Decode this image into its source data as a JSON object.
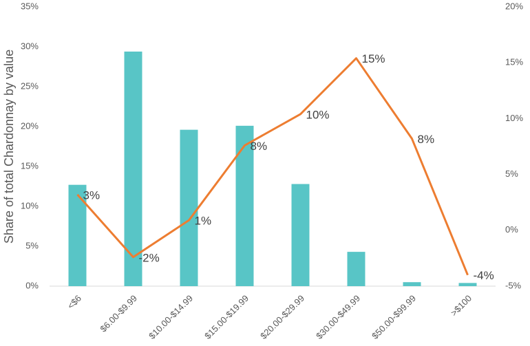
{
  "chart_data": {
    "type": "bar-line",
    "y_label": "Share of total Chardonnay by value",
    "categories": [
      "<$6",
      "$6.00-$9.99",
      "$10.00-$14.99",
      "$15.00-$19.99",
      "$20.00-$29.99",
      "$30.00-$49.99",
      "$50.00-$99.99",
      ">$100"
    ],
    "series": [
      {
        "type": "bar",
        "color": "#58c5c6",
        "values": [
          12.7,
          29.4,
          19.6,
          20.1,
          12.8,
          4.3,
          0.5,
          0.4
        ]
      },
      {
        "type": "line",
        "axis": "y2",
        "color": "#ed7d31",
        "values": [
          3.2,
          -2.4,
          0.9,
          7.6,
          10.4,
          15.4,
          8.2,
          -4.0
        ],
        "value_labels": [
          "3%",
          "-2%",
          "1%",
          "8%",
          "10%",
          "15%",
          "8%",
          "-4%"
        ]
      }
    ],
    "ylim": [
      0,
      35
    ],
    "yticks": [
      {
        "value": 0,
        "label": "0%"
      },
      {
        "value": 5,
        "label": "5%"
      },
      {
        "value": 10,
        "label": "10%"
      },
      {
        "value": 15,
        "label": "15%"
      },
      {
        "value": 20,
        "label": "20%"
      },
      {
        "value": 25,
        "label": "25%"
      },
      {
        "value": 30,
        "label": "30%"
      },
      {
        "value": 35,
        "label": "35%"
      }
    ],
    "y2lim": [
      -5,
      20
    ],
    "y2ticks": [
      {
        "value": -5,
        "label": "-5%"
      },
      {
        "value": 0,
        "label": "0%"
      },
      {
        "value": 5,
        "label": "5%"
      },
      {
        "value": 10,
        "label": "10%"
      },
      {
        "value": 15,
        "label": "15%"
      },
      {
        "value": 20,
        "label": "20%"
      }
    ]
  }
}
